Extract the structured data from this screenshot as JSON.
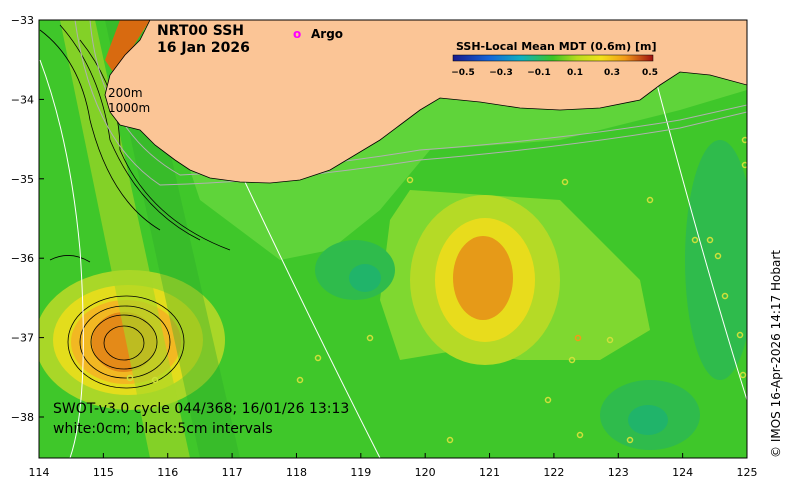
{
  "title": {
    "line1": "NRT00 SSH",
    "line2": "16 Jan 2026"
  },
  "legend": {
    "argo_marker": "o",
    "argo_label": "Argo",
    "argo_color": "#ff00ff"
  },
  "colorbar": {
    "title": "SSH-Local Mean MDT (0.6m) [m]",
    "ticks": [
      "−0.5",
      "−0.3",
      "−0.1",
      "0.1",
      "0.3",
      "0.5"
    ]
  },
  "isobaths": {
    "label1": "200m",
    "label2": "1000m"
  },
  "footer": {
    "line1": "SWOT-v3.0 cycle 044/368; 16/01/26 13:13",
    "line2": "white:0cm; black:5cm intervals"
  },
  "credit": "© IMOS 16-Apr-2026 14:17 Hobart",
  "axes": {
    "x_ticks": [
      "114",
      "115",
      "116",
      "117",
      "118",
      "119",
      "120",
      "121",
      "122",
      "123",
      "124",
      "125"
    ],
    "y_ticks": [
      "−33",
      "−34",
      "−35",
      "−36",
      "−37",
      "−38"
    ]
  },
  "colors": {
    "land": "#fbc596",
    "ocean_base": "#3dc524",
    "swath": "#1f8a1f",
    "high": "#f0a01e",
    "peak": "#d86a10",
    "low": "#20b46a"
  }
}
